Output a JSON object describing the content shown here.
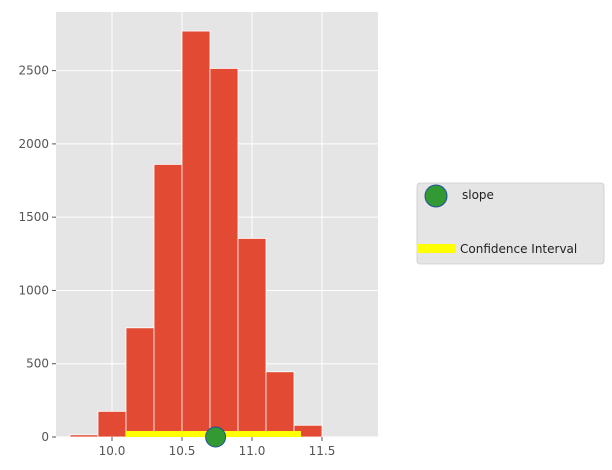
{
  "chart_data": {
    "type": "bar",
    "style": "ggplot",
    "grid": true,
    "bins": [
      {
        "start": 9.7,
        "end": 9.9,
        "count": 15
      },
      {
        "start": 9.9,
        "end": 10.1,
        "count": 175
      },
      {
        "start": 10.1,
        "end": 10.3,
        "count": 745
      },
      {
        "start": 10.3,
        "end": 10.5,
        "count": 1860
      },
      {
        "start": 10.5,
        "end": 10.7,
        "count": 2770
      },
      {
        "start": 10.7,
        "end": 10.9,
        "count": 2515
      },
      {
        "start": 10.9,
        "end": 11.1,
        "count": 1355
      },
      {
        "start": 11.1,
        "end": 11.3,
        "count": 445
      },
      {
        "start": 11.3,
        "end": 11.5,
        "count": 80
      }
    ],
    "xlim": [
      9.6,
      11.9
    ],
    "ylim": [
      0,
      2900
    ],
    "xticks": [
      10.0,
      10.5,
      11.0,
      11.5
    ],
    "xtick_labels": [
      "10.0",
      "10.5",
      "11.0",
      "11.5"
    ],
    "yticks": [
      0,
      500,
      1000,
      1500,
      2000,
      2500
    ],
    "ytick_labels": [
      "0",
      "500",
      "1000",
      "1500",
      "2000",
      "2500"
    ],
    "confidence_interval": [
      10.1,
      11.35
    ],
    "slope_point": {
      "x": 10.74,
      "y": 0
    },
    "legend_position": "right",
    "legend": {
      "slope_label": "slope",
      "ci_label": "Confidence Interval"
    },
    "colors": {
      "bars": "#E24A33",
      "background": "#E5E5E5",
      "grid": "#FFFFFF",
      "ci": "#FFFF00",
      "slope_fill": "#339933",
      "slope_edge": "#1F4FA0"
    }
  }
}
